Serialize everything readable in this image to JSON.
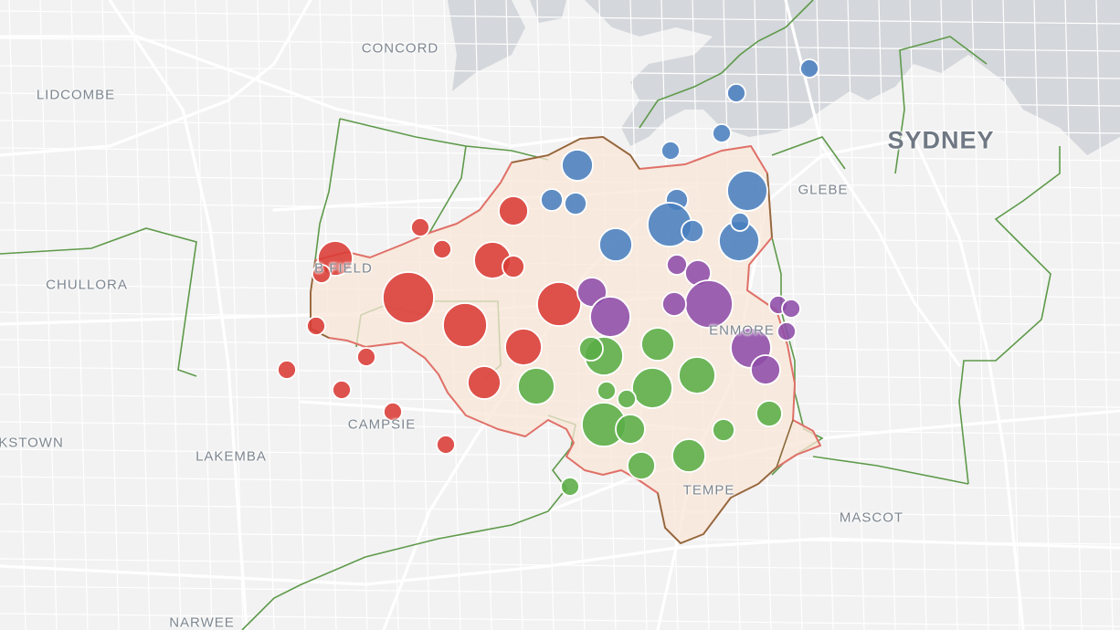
{
  "map": {
    "colors": {
      "land": "#f2f2f2",
      "water": "#d4d7db",
      "road": "#ffffff",
      "boundary_green": "#5e9a4a",
      "region_fill": "#f8e6d6",
      "region_outline": "#e07068",
      "region_outline_brown": "#8a6a3a"
    },
    "labels": [
      {
        "id": "concord",
        "text": "CONCORD"
      },
      {
        "id": "lidcombe",
        "text": "LIDCOMBE"
      },
      {
        "id": "sydney",
        "text": "SYDNEY"
      },
      {
        "id": "glebe",
        "text": "GLEBE"
      },
      {
        "id": "chullora",
        "text": "CHULLORA"
      },
      {
        "id": "burwood",
        "text": "B    FIELD"
      },
      {
        "id": "enmore",
        "text": "ENMORE"
      },
      {
        "id": "campsie",
        "text": "CAMPSIE"
      },
      {
        "id": "bankstown",
        "text": "KSTOWN"
      },
      {
        "id": "lakemba",
        "text": "LAKEMBA"
      },
      {
        "id": "tempe",
        "text": "TEMPE"
      },
      {
        "id": "mascot",
        "text": "MASCOT"
      },
      {
        "id": "narwee",
        "text": "NARWEE"
      }
    ],
    "clusters": [
      {
        "name": "red",
        "color": "#d93b35",
        "count": 22
      },
      {
        "name": "blue",
        "color": "#4a7fbf",
        "count": 16
      },
      {
        "name": "purple",
        "color": "#8e4ca8",
        "count": 12
      },
      {
        "name": "green",
        "color": "#5aad45",
        "count": 19
      }
    ]
  }
}
